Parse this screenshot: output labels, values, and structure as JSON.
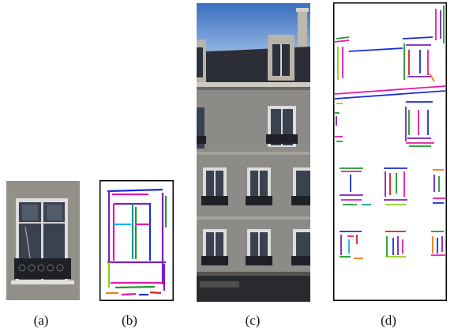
{
  "figure": {
    "captions": [
      "(a)",
      "(b)",
      "(c)",
      "(d)"
    ],
    "colors": {
      "sky": "#5a86c6",
      "wall": "#8d8c88",
      "roof": "#2d3038",
      "frame": "#d9d9d9",
      "glass": "#3b4453",
      "railing": "#1e1f24",
      "edge_blue": "#1a2fd6",
      "edge_magenta": "#e61aa8",
      "edge_purple": "#7a1fc4",
      "edge_green": "#1f9a2a",
      "edge_teal": "#169a9a",
      "edge_red": "#d81f1f",
      "edge_orange": "#e67d1a",
      "edge_lime": "#8ad21a",
      "edge_cyan": "#1ab4e6"
    }
  }
}
